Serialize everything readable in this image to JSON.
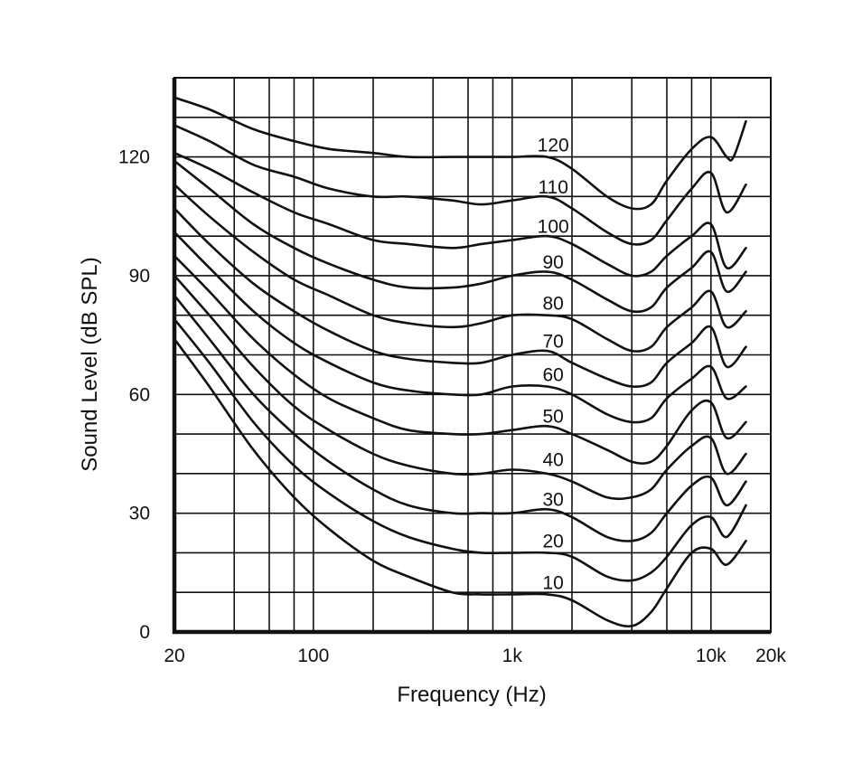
{
  "chart_data": {
    "type": "line",
    "title": "",
    "xlabel": "Frequency (Hz)",
    "ylabel": "Sound Level (dB SPL)",
    "x_scale": "log",
    "xlim": [
      20,
      20000
    ],
    "ylim": [
      0,
      140
    ],
    "grid": true,
    "legend": "none",
    "colors": {
      "line": "#111111",
      "background": "#ffffff"
    },
    "x_ticks": [
      {
        "value": 20,
        "label": "20"
      },
      {
        "value": 100,
        "label": "100"
      },
      {
        "value": 1000,
        "label": "1k"
      },
      {
        "value": 10000,
        "label": "10k"
      },
      {
        "value": 20000,
        "label": "20k"
      }
    ],
    "y_ticks": [
      {
        "value": 0,
        "label": "0"
      },
      {
        "value": 30,
        "label": "30"
      },
      {
        "value": 60,
        "label": "60"
      },
      {
        "value": 90,
        "label": "90"
      },
      {
        "value": 120,
        "label": "120"
      }
    ],
    "x_grid": [
      40,
      60,
      80,
      100,
      200,
      400,
      600,
      800,
      1000,
      2000,
      4000,
      6000,
      8000,
      10000,
      20000
    ],
    "y_grid": [
      10,
      20,
      30,
      40,
      50,
      60,
      70,
      80,
      90,
      100,
      110,
      120,
      130,
      140
    ],
    "series": [
      {
        "label": "10",
        "x": [
          20,
          30,
          50,
          80,
          120,
          200,
          300,
          500,
          700,
          1000,
          1500,
          2000,
          3000,
          4000,
          5000,
          6000,
          8000,
          10000,
          12000,
          15000
        ],
        "y": [
          74,
          62,
          46,
          34,
          26,
          18,
          14,
          10,
          9.5,
          9.5,
          9.5,
          8,
          3,
          1.5,
          5,
          11,
          20,
          21,
          17,
          23
        ]
      },
      {
        "label": "20",
        "x": [
          20,
          30,
          50,
          80,
          120,
          200,
          300,
          500,
          700,
          1000,
          1500,
          2000,
          3000,
          4000,
          5000,
          6000,
          8000,
          10000,
          12000,
          15000
        ],
        "y": [
          79,
          68,
          53,
          42,
          35,
          28,
          24,
          21,
          20,
          20,
          20,
          19,
          14,
          13,
          15,
          19,
          27,
          29,
          24,
          32
        ]
      },
      {
        "label": "30",
        "x": [
          20,
          30,
          50,
          80,
          120,
          200,
          300,
          500,
          700,
          1000,
          1500,
          2000,
          3000,
          4000,
          5000,
          6000,
          8000,
          10000,
          12000,
          15000
        ],
        "y": [
          85,
          74,
          60,
          50,
          43,
          36,
          32,
          30,
          30,
          30,
          31,
          29,
          24,
          23,
          25,
          30,
          37,
          39,
          32,
          38
        ]
      },
      {
        "label": "40",
        "x": [
          20,
          30,
          50,
          80,
          120,
          200,
          300,
          500,
          700,
          1000,
          1500,
          2000,
          3000,
          4000,
          5000,
          6000,
          8000,
          10000,
          12000,
          15000
        ],
        "y": [
          90,
          80,
          67,
          57,
          51,
          45,
          42,
          40,
          40,
          41,
          40,
          38,
          34,
          34,
          36,
          41,
          47,
          49,
          40,
          45
        ]
      },
      {
        "label": "50",
        "x": [
          20,
          30,
          50,
          80,
          120,
          200,
          300,
          500,
          700,
          1000,
          1500,
          2000,
          3000,
          4000,
          5000,
          6000,
          8000,
          10000,
          12000,
          15000
        ],
        "y": [
          95,
          86,
          74,
          65,
          59,
          54,
          51,
          50,
          50,
          51,
          52,
          50,
          46,
          43,
          43,
          47,
          56,
          58,
          49,
          53
        ]
      },
      {
        "label": "60",
        "x": [
          20,
          30,
          50,
          80,
          120,
          200,
          300,
          500,
          700,
          1000,
          1500,
          2000,
          3000,
          4000,
          5000,
          6000,
          8000,
          10000,
          12000,
          15000
        ],
        "y": [
          101,
          92,
          81,
          73,
          68,
          63,
          61,
          60,
          60,
          62,
          62,
          60,
          55,
          53,
          54,
          59,
          64,
          67,
          59,
          62
        ]
      },
      {
        "label": "70",
        "x": [
          20,
          30,
          50,
          80,
          120,
          200,
          300,
          500,
          700,
          1000,
          1500,
          2000,
          3000,
          4000,
          5000,
          6000,
          8000,
          10000,
          12000,
          15000
        ],
        "y": [
          107,
          98,
          88,
          81,
          76,
          71,
          69,
          68,
          68,
          70,
          71,
          68,
          64,
          62,
          63,
          68,
          73,
          77,
          67,
          72
        ]
      },
      {
        "label": "80",
        "x": [
          20,
          30,
          50,
          80,
          120,
          200,
          300,
          500,
          700,
          1000,
          1500,
          2000,
          3000,
          4000,
          5000,
          6000,
          8000,
          10000,
          12000,
          15000
        ],
        "y": [
          113,
          105,
          96,
          89,
          85,
          80,
          78,
          77,
          78,
          80,
          80,
          79,
          74,
          71,
          72,
          77,
          82,
          86,
          77,
          81
        ]
      },
      {
        "label": "90",
        "x": [
          20,
          30,
          50,
          80,
          120,
          200,
          300,
          500,
          700,
          1000,
          1500,
          2000,
          3000,
          4000,
          5000,
          6000,
          8000,
          10000,
          12000,
          15000
        ],
        "y": [
          119,
          112,
          103,
          97,
          93,
          89,
          87,
          87,
          88,
          90,
          91,
          89,
          84,
          81,
          82,
          87,
          92,
          96,
          86,
          91
        ]
      },
      {
        "label": "100",
        "x": [
          20,
          30,
          50,
          80,
          120,
          200,
          300,
          500,
          700,
          1000,
          1500,
          2000,
          3000,
          4000,
          5000,
          6000,
          8000,
          10000,
          12000,
          15000
        ],
        "y": [
          121,
          117,
          111,
          106,
          103,
          99,
          98,
          97,
          98,
          99,
          100,
          98,
          93,
          90,
          91,
          95,
          100,
          103,
          92,
          97
        ]
      },
      {
        "label": "110",
        "x": [
          20,
          30,
          50,
          80,
          120,
          200,
          300,
          500,
          700,
          1000,
          1500,
          2000,
          3000,
          4000,
          5000,
          6000,
          8000,
          10000,
          12000,
          15000
        ],
        "y": [
          128,
          124,
          118,
          115,
          112,
          110,
          110,
          109,
          108,
          109,
          110,
          107,
          101,
          98,
          99,
          104,
          112,
          116,
          106,
          113
        ]
      },
      {
        "label": "120",
        "x": [
          20,
          30,
          50,
          80,
          120,
          200,
          300,
          500,
          700,
          1000,
          1500,
          2000,
          3000,
          4000,
          5000,
          6000,
          8000,
          10000,
          12000,
          13000,
          15000
        ],
        "y": [
          135,
          132,
          127,
          124,
          122,
          121,
          120,
          120,
          120,
          120,
          120,
          117,
          110,
          107,
          108,
          114,
          122,
          125,
          120,
          120,
          129
        ]
      }
    ]
  }
}
